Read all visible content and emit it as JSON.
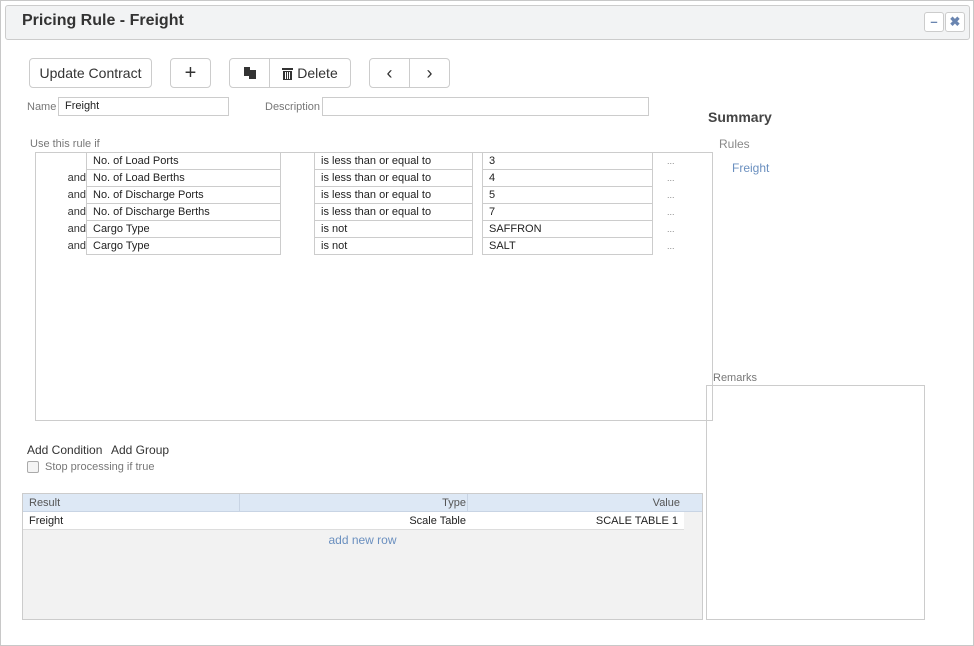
{
  "window": {
    "title": "Pricing Rule - Freight",
    "minimize_icon": "minus-icon",
    "close_icon": "x-icon"
  },
  "toolbar": {
    "update_contract": "Update Contract",
    "add_icon": "plus-icon",
    "copy_icon": "copy-icon",
    "delete": "Delete",
    "delete_icon": "trash-icon",
    "prev_icon": "chevron-left-icon",
    "next_icon": "chevron-right-icon"
  },
  "form": {
    "name_label": "Name",
    "name_value": "Freight",
    "description_label": "Description",
    "description_value": ""
  },
  "conditions": {
    "label": "Use this rule if",
    "rows": [
      {
        "conj": "",
        "field": "No. of Load Ports",
        "operator": "is less than or equal to",
        "value": "3"
      },
      {
        "conj": "and",
        "field": "No. of Load Berths",
        "operator": "is less than or equal to",
        "value": "4"
      },
      {
        "conj": "and",
        "field": "No. of Discharge Ports",
        "operator": "is less than or equal to",
        "value": "5"
      },
      {
        "conj": "and",
        "field": "No. of Discharge Berths",
        "operator": "is less than or equal to",
        "value": "7"
      },
      {
        "conj": "and",
        "field": "Cargo Type",
        "operator": "is not",
        "value": "SAFFRON"
      },
      {
        "conj": "and",
        "field": "Cargo Type",
        "operator": "is not",
        "value": "SALT"
      }
    ],
    "more": "..."
  },
  "actions": {
    "add_condition": "Add Condition",
    "add_group": "Add Group",
    "stop_processing": "Stop processing if true",
    "stop_checked": false
  },
  "results": {
    "headers": [
      "Result",
      "Type",
      "Value"
    ],
    "rows": [
      {
        "result": "Freight",
        "type": "Scale Table",
        "value": "SCALE TABLE 1"
      }
    ],
    "add_row": "add new row"
  },
  "summary": {
    "title": "Summary",
    "rules_label": "Rules",
    "rules": [
      "Freight"
    ]
  },
  "remarks": {
    "label": "Remarks",
    "value": ""
  },
  "colors": {
    "accent": "#6a8fbf",
    "grid_header": "#dde8f5"
  }
}
